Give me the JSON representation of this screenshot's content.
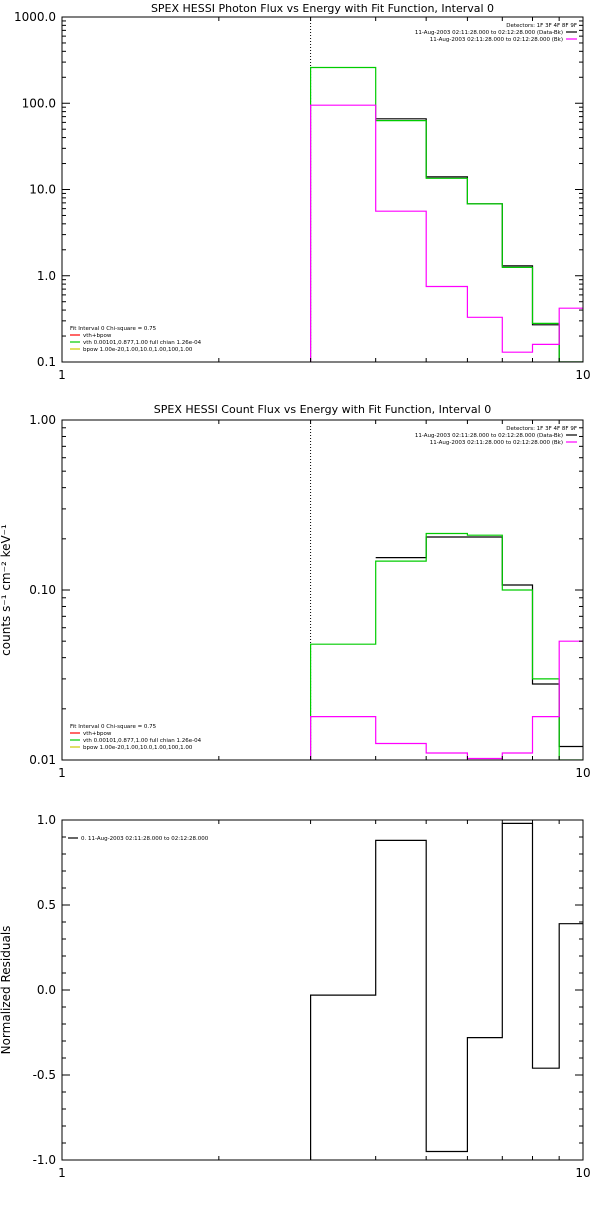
{
  "colors": {
    "background": "#ffffff",
    "axes": "#000000",
    "data": "#000000",
    "model_total": "#ff00ff",
    "model_vth": "#00cc00",
    "model_bpow": "#cccc00",
    "red": "#ff0000"
  },
  "chart_data": [
    {
      "type": "line",
      "style": "histogram-step",
      "title": "SPEX HESSI Photon Flux vs Energy with Fit Function, Interval 0",
      "xlabel": "",
      "ylabel": "",
      "xscale": "log",
      "yscale": "log",
      "xlim": [
        1,
        10
      ],
      "ylim": [
        0.1,
        1000
      ],
      "xticks": [
        {
          "value": 1,
          "label": "1"
        },
        {
          "value": 10,
          "label": "10"
        }
      ],
      "yticks": [
        {
          "value": 0.1,
          "label": "0.1"
        },
        {
          "value": 1,
          "label": "1.0"
        },
        {
          "value": 10,
          "label": "10.0"
        },
        {
          "value": 100,
          "label": "100.0"
        },
        {
          "value": 1000,
          "label": "1000.0"
        }
      ],
      "vline": 3,
      "bin_edges": [
        3,
        4,
        5,
        6,
        7,
        8,
        9,
        10
      ],
      "series": [
        {
          "color": "#000000",
          "values": [
            null,
            66,
            14,
            6.8,
            1.3,
            0.27,
            0.1
          ]
        },
        {
          "color": "#00cc00",
          "values": [
            260,
            63,
            13.5,
            6.8,
            1.25,
            0.28,
            0.1
          ]
        },
        {
          "color": "#ff00ff",
          "values": [
            95,
            5.6,
            0.75,
            0.33,
            0.13,
            0.16,
            0.42
          ]
        }
      ],
      "legend_top": {
        "detectors": "Detectors: 1F 3F 4F 8F 9F",
        "entries": [
          {
            "text": "11-Aug-2003 02:11:28.000 to 02:12:28.000 (Data-Bk)",
            "color": "#000000"
          },
          {
            "text": "11-Aug-2003 02:11:28.000 to 02:12:28.000 (Bk)",
            "color": "#ff00ff"
          }
        ]
      },
      "legend_bottom": {
        "header": "Fit Interval 0   Chi-square = 0.75",
        "entries": [
          {
            "text": "vth+bpow",
            "color": "#ff0000"
          },
          {
            "text": "vth 0.00101,0.877,1.00  full chian 1.26e-04",
            "color": "#00cc00"
          },
          {
            "text": "bpow 1.00e-20,1.00,10.0,1.00,100,1.00",
            "color": "#cccc00"
          }
        ]
      }
    },
    {
      "type": "line",
      "style": "histogram-step",
      "title": "SPEX HESSI Count Flux vs Energy with Fit Function, Interval 0",
      "xlabel": "",
      "ylabel": "counts s⁻¹ cm⁻² keV⁻¹",
      "xscale": "log",
      "yscale": "log",
      "xlim": [
        1,
        10
      ],
      "ylim": [
        0.01,
        1
      ],
      "xticks": [
        {
          "value": 1,
          "label": "1"
        },
        {
          "value": 10,
          "label": "10"
        }
      ],
      "yticks": [
        {
          "value": 0.01,
          "label": "0.01"
        },
        {
          "value": 0.1,
          "label": "0.10"
        },
        {
          "value": 1,
          "label": "1.00"
        }
      ],
      "vline": 3,
      "bin_edges": [
        3,
        4,
        5,
        6,
        7,
        8,
        9,
        10
      ],
      "series": [
        {
          "color": "#000000",
          "values": [
            null,
            0.155,
            0.205,
            0.205,
            0.107,
            0.028,
            0.012
          ]
        },
        {
          "color": "#00cc00",
          "values": [
            0.048,
            0.148,
            0.215,
            0.21,
            0.1,
            0.03,
            0.01
          ]
        },
        {
          "color": "#ff00ff",
          "values": [
            0.018,
            0.0125,
            0.011,
            0.0102,
            0.011,
            0.018,
            0.05
          ]
        }
      ],
      "legend_top": {
        "detectors": "Detectors: 1F 3F 4F 8F 9F",
        "entries": [
          {
            "text": "11-Aug-2003 02:11:28.000 to 02:12:28.000 (Data-Bk)",
            "color": "#000000"
          },
          {
            "text": "11-Aug-2003 02:11:28.000 to 02:12:28.000 (Bk)",
            "color": "#ff00ff"
          }
        ]
      },
      "legend_bottom": {
        "header": "Fit Interval 0   Chi-square = 0.75",
        "entries": [
          {
            "text": "vth+bpow",
            "color": "#ff0000"
          },
          {
            "text": "vth 0.00101,0.877,1.00  full chian 1.26e-04",
            "color": "#00cc00"
          },
          {
            "text": "bpow 1.00e-20,1.00,10.0,1.00,100,1.00",
            "color": "#cccc00"
          }
        ]
      }
    },
    {
      "type": "line",
      "style": "histogram-step",
      "title": "",
      "xlabel": "",
      "ylabel": "Normalized Residuals",
      "xscale": "log",
      "yscale": "linear",
      "xlim": [
        1,
        10
      ],
      "ylim": [
        -1,
        1
      ],
      "xticks": [
        {
          "value": 1,
          "label": "1"
        },
        {
          "value": 10,
          "label": "10"
        }
      ],
      "yticks": [
        {
          "value": -1,
          "label": "-1.0"
        },
        {
          "value": -0.5,
          "label": "-0.5"
        },
        {
          "value": 0,
          "label": "0.0"
        },
        {
          "value": 0.5,
          "label": "0.5"
        },
        {
          "value": 1,
          "label": "1.0"
        }
      ],
      "vline": null,
      "bin_edges": [
        3,
        4,
        5,
        6,
        7,
        8,
        9,
        10
      ],
      "series": [
        {
          "color": "#000000",
          "values": [
            -0.03,
            0.88,
            -0.95,
            -0.28,
            0.98,
            -0.46,
            0.39
          ]
        }
      ],
      "legend_top": {
        "detectors": "",
        "entries": [
          {
            "text": "0. 11-Aug-2003 02:11:28.000 to 02:12:28.000",
            "color": "#000000"
          }
        ]
      },
      "legend_bottom": null
    }
  ]
}
